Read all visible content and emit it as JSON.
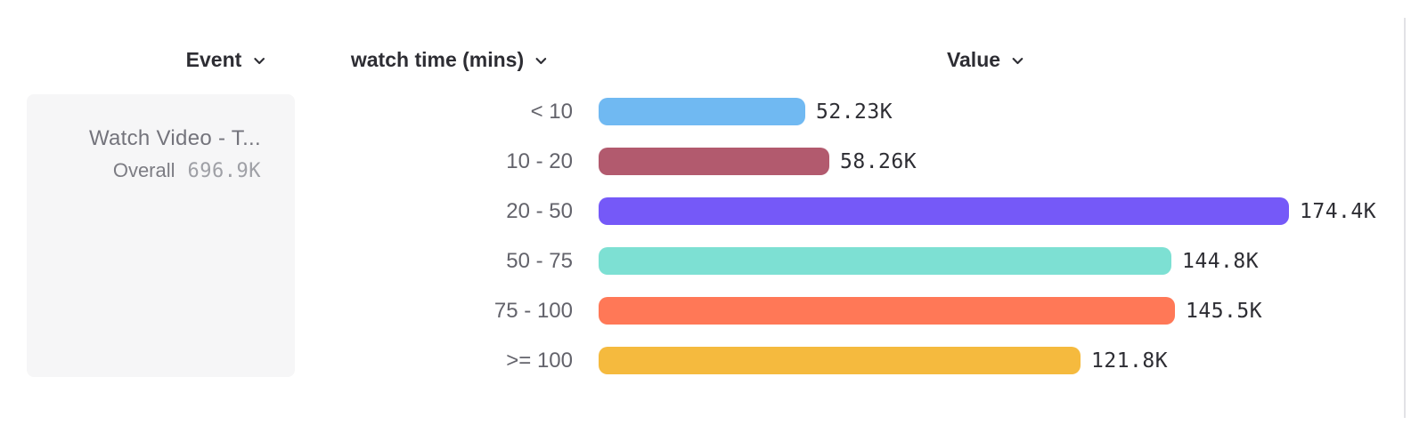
{
  "header": {
    "columns": [
      {
        "label": "Event"
      },
      {
        "label": "watch time (mins)"
      },
      {
        "label": "Value"
      }
    ]
  },
  "event_card": {
    "title": "Watch Video - T...",
    "overall_label": "Overall",
    "overall_value": "696.9K"
  },
  "chart_data": {
    "type": "bar",
    "orientation": "horizontal",
    "title": "",
    "xlabel": "Value",
    "ylabel": "watch time (mins)",
    "categories": [
      "< 10",
      "10 - 20",
      "20 - 50",
      "50 - 75",
      "75 - 100",
      ">= 100"
    ],
    "values": [
      52230,
      58260,
      174400,
      144800,
      145500,
      121800
    ],
    "value_labels": [
      "52.23K",
      "58.26K",
      "174.4K",
      "144.8K",
      "145.5K",
      "121.8K"
    ],
    "bar_colors": [
      "#70b9f2",
      "#b25a6e",
      "#7559f8",
      "#7de0d3",
      "#ff7857",
      "#f5ba3e"
    ],
    "overall_total": "696.9K",
    "grid": false,
    "legend_position": "left"
  },
  "colors": {
    "header_text": "#2d2d33",
    "category_text": "#63636b",
    "card_background": "#f6f6f7",
    "divider": "#e2e2e6"
  }
}
